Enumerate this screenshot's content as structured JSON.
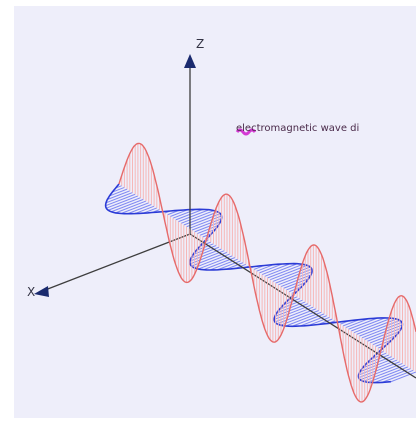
{
  "axes": {
    "z_label": "Z",
    "x_label": "X",
    "axis_color": "#3d3d3d",
    "arrow_color": "#1a2a6e"
  },
  "legend": {
    "text": "electromagnetic wave di",
    "icon": "magenta-wave-icon",
    "icon_color": "#d43ad4"
  },
  "waves": {
    "electric_field_color": "#e66a6a",
    "electric_fill": "#f6b7b7",
    "magnetic_field_color": "#2b3bd6",
    "magnetic_fill": "#7f88f2"
  }
}
